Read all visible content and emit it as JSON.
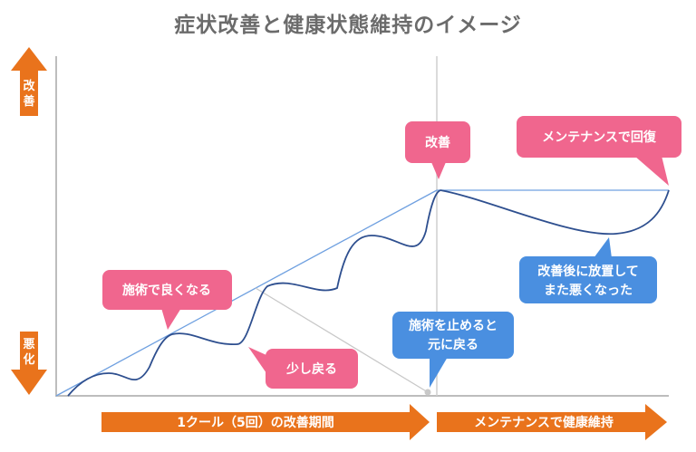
{
  "title": "症状改善と健康状態維持のイメージ",
  "axis": {
    "up_label": [
      "改",
      "善"
    ],
    "down_label": [
      "悪",
      "化"
    ]
  },
  "bubbles": {
    "improve": "改善",
    "recover": "メンテナンスで回復",
    "treat_better": "施術で良くなる",
    "slightly_back": "少し戻る",
    "stop_line1": "施術を止めると",
    "stop_line2": "元に戻る",
    "neglect_line1": "改善後に放置して",
    "neglect_line2": "また悪くなった"
  },
  "phases": {
    "phase1": "1クール（5回）の改善期間",
    "phase2": "メンテナンスで健康維持"
  },
  "colors": {
    "pink": "#f0668e",
    "blue": "#4a8fe0",
    "orange": "#e9731c",
    "curve": "#2e4f8f",
    "trend": "#6fa0e0",
    "axis": "#bdbdbd",
    "title": "#6b6b6b"
  }
}
